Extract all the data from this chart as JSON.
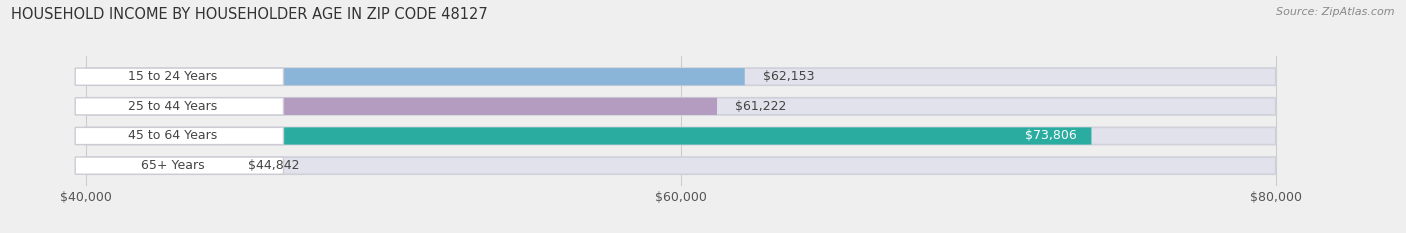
{
  "title": "HOUSEHOLD INCOME BY HOUSEHOLDER AGE IN ZIP CODE 48127",
  "source": "Source: ZipAtlas.com",
  "categories": [
    "15 to 24 Years",
    "25 to 44 Years",
    "45 to 64 Years",
    "65+ Years"
  ],
  "values": [
    62153,
    61222,
    73806,
    44842
  ],
  "bar_colors": [
    "#8ab5d8",
    "#b49cc0",
    "#2aada0",
    "#b5b9e2"
  ],
  "value_labels": [
    "$62,153",
    "$61,222",
    "$73,806",
    "$44,842"
  ],
  "xmin": 40000,
  "xmax": 80000,
  "xticks": [
    40000,
    60000,
    80000
  ],
  "xticklabels": [
    "$40,000",
    "$60,000",
    "$80,000"
  ],
  "title_fontsize": 10.5,
  "source_fontsize": 8,
  "label_fontsize": 9,
  "tick_fontsize": 9,
  "bar_height": 0.58,
  "background_color": "#efefef",
  "bar_bg_color": "#e2e2ec"
}
